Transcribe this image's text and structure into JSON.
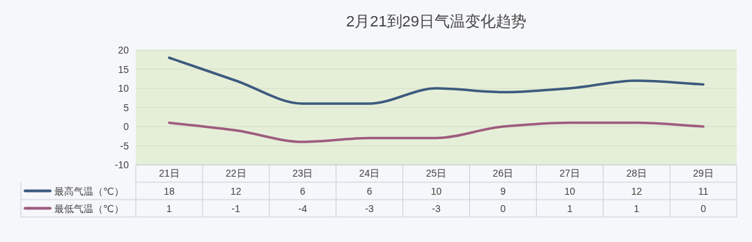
{
  "chart_data": {
    "type": "line",
    "title": "2月21到29日气温变化趋势",
    "categories": [
      "21日",
      "22日",
      "23日",
      "24日",
      "25日",
      "26日",
      "27日",
      "28日",
      "29日"
    ],
    "series": [
      {
        "name": "最高气温（℃）",
        "color": "#3c5a7e",
        "values": [
          18,
          12,
          6,
          6,
          10,
          9,
          10,
          12,
          11
        ]
      },
      {
        "name": "最低气温（℃）",
        "color": "#9e5b7e",
        "values": [
          1,
          -1,
          -4,
          -3,
          -3,
          0,
          1,
          1,
          0
        ]
      }
    ],
    "ylim": [
      -10,
      20
    ],
    "yticks": [
      -10,
      -5,
      0,
      5,
      10,
      15,
      20
    ],
    "grid": "y",
    "legend": "bottom left",
    "data_labels": true,
    "marker": "none"
  }
}
